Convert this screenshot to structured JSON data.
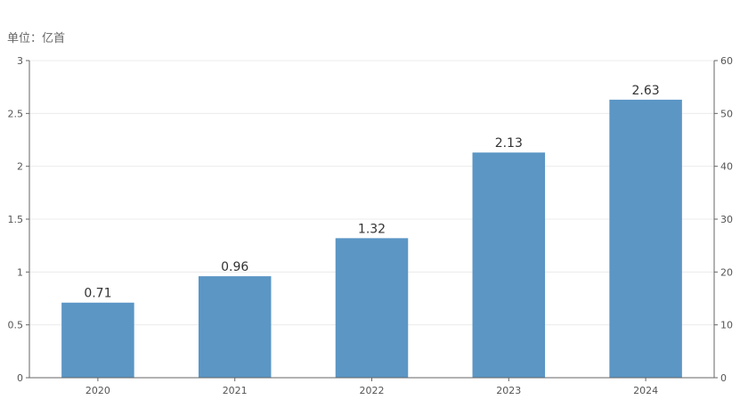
{
  "unit_label": "单位：亿首",
  "colors": {
    "bar": "#5b96c5",
    "axis": "#666666",
    "grid": "#ececec"
  },
  "chart_data": {
    "type": "bar",
    "categories": [
      "2020",
      "2021",
      "2022",
      "2023",
      "2024"
    ],
    "values": [
      0.71,
      0.96,
      1.32,
      2.13,
      2.63
    ],
    "data_labels": [
      "0.71",
      "0.96",
      "1.32",
      "2.13",
      "2.63"
    ],
    "title": "",
    "xlabel": "",
    "ylabel": "",
    "ylim": [
      0,
      3
    ],
    "y_ticks": [
      "0",
      "0.5",
      "1",
      "1.5",
      "2",
      "2.5",
      "3"
    ],
    "y_tick_values": [
      0,
      0.5,
      1,
      1.5,
      2,
      2.5,
      3
    ],
    "y2lim": [
      0,
      60
    ],
    "y2_ticks": [
      "0",
      "10",
      "20",
      "30",
      "40",
      "50",
      "60"
    ],
    "y2_tick_values": [
      0,
      10,
      20,
      30,
      40,
      50,
      60
    ],
    "grid": true,
    "legend": "none"
  }
}
